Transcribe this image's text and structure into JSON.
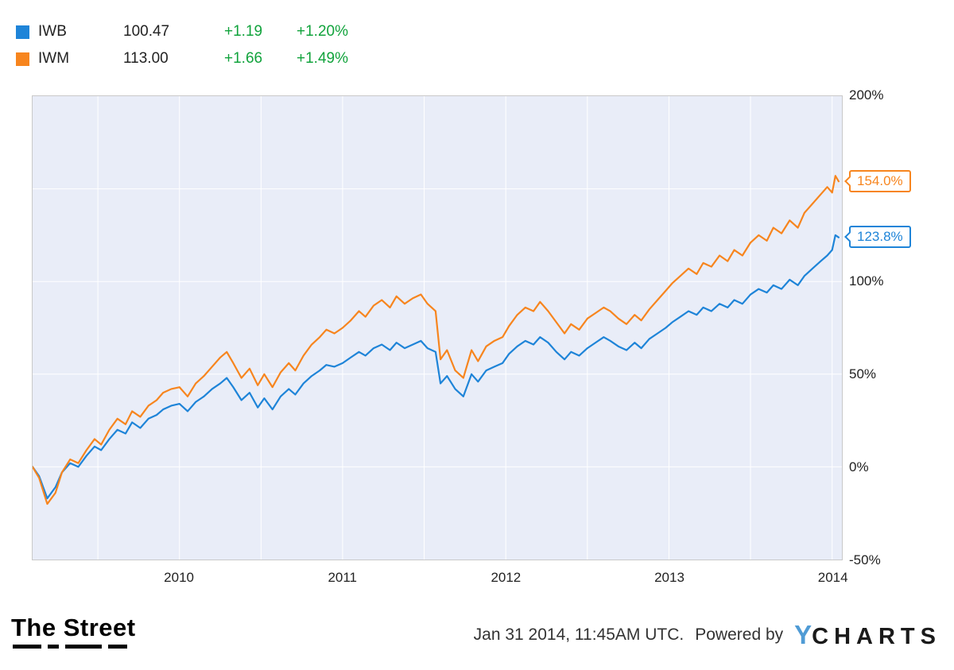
{
  "legend": {
    "change_color": "#11a33c",
    "rows": [
      {
        "ticker": "IWB",
        "price": "100.47",
        "change": "+1.19",
        "change_pct": "+1.20%",
        "color": "#1e84d8"
      },
      {
        "ticker": "IWM",
        "price": "113.00",
        "change": "+1.66",
        "change_pct": "+1.49%",
        "color": "#f7851e"
      }
    ]
  },
  "chart_data": {
    "type": "line",
    "title": "",
    "xlabel": "",
    "ylabel": "",
    "xlim": [
      2009.1,
      2014.06
    ],
    "ylim": [
      -50,
      200
    ],
    "plot_bg": "#e9edf8",
    "grid_color": "#ffffff",
    "legend_position": "top-left",
    "y_axis_side": "right",
    "y_tick_labels": [
      {
        "value": 200,
        "label": "200%"
      },
      {
        "value": 100,
        "label": "100%"
      },
      {
        "value": 50,
        "label": "50%"
      },
      {
        "value": 0,
        "label": "0%"
      },
      {
        "value": -50,
        "label": "-50%"
      }
    ],
    "y_gridlines": [
      150,
      100,
      50,
      0
    ],
    "x_gridlines": [
      2009.5,
      2010,
      2010.5,
      2011,
      2011.5,
      2012,
      2012.5,
      2013,
      2013.5,
      2014
    ],
    "x_tick_labels": [
      {
        "value": 2010,
        "label": "2010"
      },
      {
        "value": 2011,
        "label": "2011"
      },
      {
        "value": 2012,
        "label": "2012"
      },
      {
        "value": 2013,
        "label": "2013"
      },
      {
        "value": 2014,
        "label": "2014"
      }
    ],
    "series": [
      {
        "name": "IWB",
        "color": "#1e84d8",
        "end_label": "123.8%",
        "points": [
          [
            2009.1,
            0
          ],
          [
            2009.14,
            -5
          ],
          [
            2009.19,
            -17
          ],
          [
            2009.24,
            -11
          ],
          [
            2009.28,
            -3
          ],
          [
            2009.33,
            2
          ],
          [
            2009.38,
            0
          ],
          [
            2009.43,
            6
          ],
          [
            2009.48,
            11
          ],
          [
            2009.52,
            9
          ],
          [
            2009.57,
            15
          ],
          [
            2009.62,
            20
          ],
          [
            2009.67,
            18
          ],
          [
            2009.71,
            24
          ],
          [
            2009.76,
            21
          ],
          [
            2009.81,
            26
          ],
          [
            2009.86,
            28
          ],
          [
            2009.9,
            31
          ],
          [
            2009.95,
            33
          ],
          [
            2010.0,
            34
          ],
          [
            2010.05,
            30
          ],
          [
            2010.1,
            35
          ],
          [
            2010.15,
            38
          ],
          [
            2010.2,
            42
          ],
          [
            2010.25,
            45
          ],
          [
            2010.29,
            48
          ],
          [
            2010.33,
            43
          ],
          [
            2010.38,
            36
          ],
          [
            2010.43,
            40
          ],
          [
            2010.48,
            32
          ],
          [
            2010.52,
            37
          ],
          [
            2010.57,
            31
          ],
          [
            2010.62,
            38
          ],
          [
            2010.67,
            42
          ],
          [
            2010.71,
            39
          ],
          [
            2010.76,
            45
          ],
          [
            2010.81,
            49
          ],
          [
            2010.86,
            52
          ],
          [
            2010.9,
            55
          ],
          [
            2010.95,
            54
          ],
          [
            2011.0,
            56
          ],
          [
            2011.05,
            59
          ],
          [
            2011.1,
            62
          ],
          [
            2011.14,
            60
          ],
          [
            2011.19,
            64
          ],
          [
            2011.24,
            66
          ],
          [
            2011.29,
            63
          ],
          [
            2011.33,
            67
          ],
          [
            2011.38,
            64
          ],
          [
            2011.43,
            66
          ],
          [
            2011.48,
            68
          ],
          [
            2011.52,
            64
          ],
          [
            2011.57,
            62
          ],
          [
            2011.6,
            45
          ],
          [
            2011.64,
            49
          ],
          [
            2011.69,
            42
          ],
          [
            2011.74,
            38
          ],
          [
            2011.79,
            50
          ],
          [
            2011.83,
            46
          ],
          [
            2011.88,
            52
          ],
          [
            2011.93,
            54
          ],
          [
            2011.98,
            56
          ],
          [
            2012.02,
            61
          ],
          [
            2012.07,
            65
          ],
          [
            2012.12,
            68
          ],
          [
            2012.17,
            66
          ],
          [
            2012.21,
            70
          ],
          [
            2012.26,
            67
          ],
          [
            2012.31,
            62
          ],
          [
            2012.36,
            58
          ],
          [
            2012.4,
            62
          ],
          [
            2012.45,
            60
          ],
          [
            2012.5,
            64
          ],
          [
            2012.55,
            67
          ],
          [
            2012.6,
            70
          ],
          [
            2012.64,
            68
          ],
          [
            2012.69,
            65
          ],
          [
            2012.74,
            63
          ],
          [
            2012.79,
            67
          ],
          [
            2012.83,
            64
          ],
          [
            2012.88,
            69
          ],
          [
            2012.93,
            72
          ],
          [
            2012.98,
            75
          ],
          [
            2013.02,
            78
          ],
          [
            2013.07,
            81
          ],
          [
            2013.12,
            84
          ],
          [
            2013.17,
            82
          ],
          [
            2013.21,
            86
          ],
          [
            2013.26,
            84
          ],
          [
            2013.31,
            88
          ],
          [
            2013.36,
            86
          ],
          [
            2013.4,
            90
          ],
          [
            2013.45,
            88
          ],
          [
            2013.5,
            93
          ],
          [
            2013.55,
            96
          ],
          [
            2013.6,
            94
          ],
          [
            2013.64,
            98
          ],
          [
            2013.69,
            96
          ],
          [
            2013.74,
            101
          ],
          [
            2013.79,
            98
          ],
          [
            2013.83,
            103
          ],
          [
            2013.88,
            107
          ],
          [
            2013.93,
            111
          ],
          [
            2013.97,
            114
          ],
          [
            2014.0,
            117
          ],
          [
            2014.02,
            125
          ],
          [
            2014.04,
            123.8
          ]
        ]
      },
      {
        "name": "IWM",
        "color": "#f7851e",
        "end_label": "154.0%",
        "points": [
          [
            2009.1,
            0
          ],
          [
            2009.14,
            -6
          ],
          [
            2009.19,
            -20
          ],
          [
            2009.24,
            -14
          ],
          [
            2009.28,
            -3
          ],
          [
            2009.33,
            4
          ],
          [
            2009.38,
            2
          ],
          [
            2009.43,
            9
          ],
          [
            2009.48,
            15
          ],
          [
            2009.52,
            12
          ],
          [
            2009.57,
            20
          ],
          [
            2009.62,
            26
          ],
          [
            2009.67,
            23
          ],
          [
            2009.71,
            30
          ],
          [
            2009.76,
            27
          ],
          [
            2009.81,
            33
          ],
          [
            2009.86,
            36
          ],
          [
            2009.9,
            40
          ],
          [
            2009.95,
            42
          ],
          [
            2010.0,
            43
          ],
          [
            2010.05,
            38
          ],
          [
            2010.1,
            45
          ],
          [
            2010.15,
            49
          ],
          [
            2010.2,
            54
          ],
          [
            2010.25,
            59
          ],
          [
            2010.29,
            62
          ],
          [
            2010.33,
            56
          ],
          [
            2010.38,
            48
          ],
          [
            2010.43,
            53
          ],
          [
            2010.48,
            44
          ],
          [
            2010.52,
            50
          ],
          [
            2010.57,
            43
          ],
          [
            2010.62,
            51
          ],
          [
            2010.67,
            56
          ],
          [
            2010.71,
            52
          ],
          [
            2010.76,
            60
          ],
          [
            2010.81,
            66
          ],
          [
            2010.86,
            70
          ],
          [
            2010.9,
            74
          ],
          [
            2010.95,
            72
          ],
          [
            2011.0,
            75
          ],
          [
            2011.05,
            79
          ],
          [
            2011.1,
            84
          ],
          [
            2011.14,
            81
          ],
          [
            2011.19,
            87
          ],
          [
            2011.24,
            90
          ],
          [
            2011.29,
            86
          ],
          [
            2011.33,
            92
          ],
          [
            2011.38,
            88
          ],
          [
            2011.43,
            91
          ],
          [
            2011.48,
            93
          ],
          [
            2011.52,
            88
          ],
          [
            2011.57,
            84
          ],
          [
            2011.6,
            58
          ],
          [
            2011.64,
            63
          ],
          [
            2011.69,
            52
          ],
          [
            2011.74,
            48
          ],
          [
            2011.79,
            63
          ],
          [
            2011.83,
            57
          ],
          [
            2011.88,
            65
          ],
          [
            2011.93,
            68
          ],
          [
            2011.98,
            70
          ],
          [
            2012.02,
            76
          ],
          [
            2012.07,
            82
          ],
          [
            2012.12,
            86
          ],
          [
            2012.17,
            84
          ],
          [
            2012.21,
            89
          ],
          [
            2012.26,
            84
          ],
          [
            2012.31,
            78
          ],
          [
            2012.36,
            72
          ],
          [
            2012.4,
            77
          ],
          [
            2012.45,
            74
          ],
          [
            2012.5,
            80
          ],
          [
            2012.55,
            83
          ],
          [
            2012.6,
            86
          ],
          [
            2012.64,
            84
          ],
          [
            2012.69,
            80
          ],
          [
            2012.74,
            77
          ],
          [
            2012.79,
            82
          ],
          [
            2012.83,
            79
          ],
          [
            2012.88,
            85
          ],
          [
            2012.93,
            90
          ],
          [
            2012.98,
            95
          ],
          [
            2013.02,
            99
          ],
          [
            2013.07,
            103
          ],
          [
            2013.12,
            107
          ],
          [
            2013.17,
            104
          ],
          [
            2013.21,
            110
          ],
          [
            2013.26,
            108
          ],
          [
            2013.31,
            114
          ],
          [
            2013.36,
            111
          ],
          [
            2013.4,
            117
          ],
          [
            2013.45,
            114
          ],
          [
            2013.5,
            121
          ],
          [
            2013.55,
            125
          ],
          [
            2013.6,
            122
          ],
          [
            2013.64,
            129
          ],
          [
            2013.69,
            126
          ],
          [
            2013.74,
            133
          ],
          [
            2013.79,
            129
          ],
          [
            2013.83,
            137
          ],
          [
            2013.88,
            142
          ],
          [
            2013.93,
            147
          ],
          [
            2013.97,
            151
          ],
          [
            2014.0,
            148
          ],
          [
            2014.02,
            157
          ],
          [
            2014.04,
            154
          ]
        ]
      }
    ]
  },
  "footer": {
    "logo_text": "The Street",
    "timestamp": "Jan 31 2014, 11:45AM UTC.",
    "powered_by": "Powered by",
    "ycharts_y": "Y",
    "ycharts_rest": "CHARTS",
    "ycharts_y_color": "#4f9bd5"
  }
}
